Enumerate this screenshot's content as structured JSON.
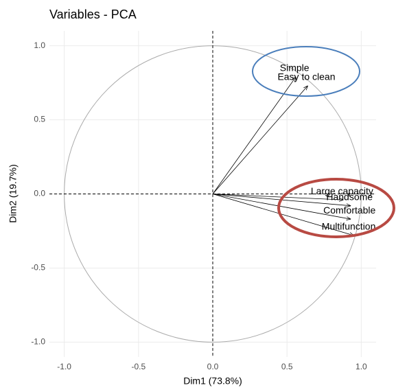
{
  "chart_data": {
    "type": "arrows",
    "title": "Variables - PCA",
    "x_label": "Dim1 (73.8%)",
    "y_label": "Dim2 (19.7%)",
    "labels": [
      "Simple",
      "Easy to clean",
      "Large capacity",
      "Handsome",
      "Comfortable",
      "Multifunctional"
    ],
    "x": [
      0.56,
      0.64,
      0.88,
      0.93,
      0.93,
      0.95
    ],
    "values": [
      0.79,
      0.73,
      -0.04,
      -0.08,
      -0.17,
      -0.28
    ],
    "color": "#000000",
    "xlim": [
      -1.1,
      1.1
    ],
    "ylim": [
      -1.1,
      1.1
    ],
    "xticks": [
      {
        "value": -1.0,
        "label": "-1.0"
      },
      -0.5,
      {
        "value": 0.0,
        "label": "0.0"
      },
      0.5,
      {
        "value": 1.0,
        "label": "1.0"
      }
    ],
    "yticks": [
      {
        "value": -1.0,
        "label": "-1.0"
      },
      -0.5,
      {
        "value": 0.0,
        "label": "0.0"
      },
      0.5,
      {
        "value": 1.0,
        "label": "1.0"
      }
    ],
    "grid": true
  }
}
